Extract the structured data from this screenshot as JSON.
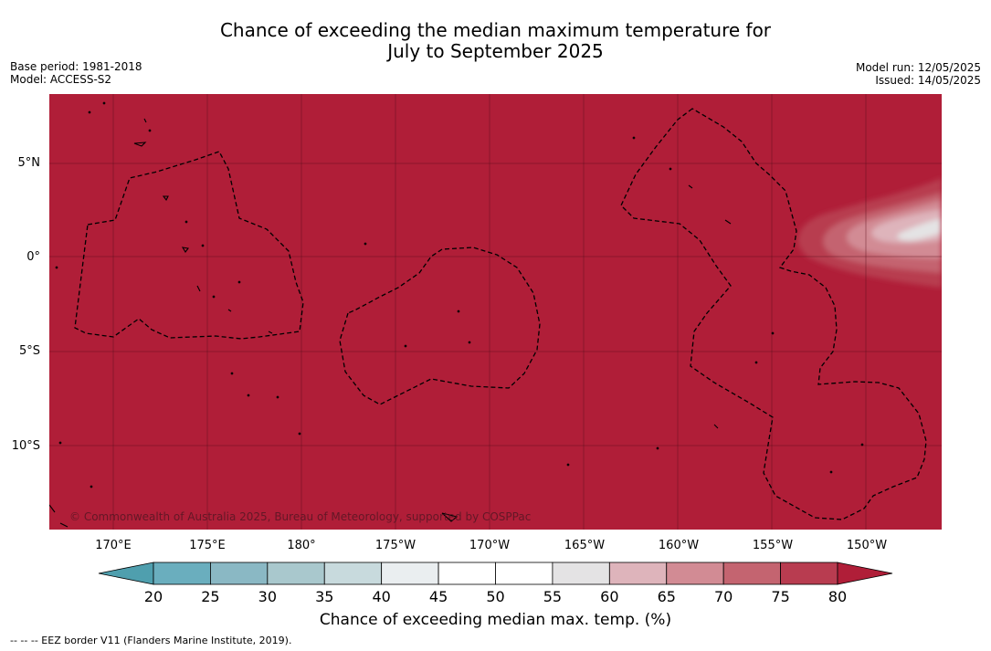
{
  "title_line1": "Chance of exceeding the median maximum temperature for",
  "title_line2": "July to September 2025",
  "meta_left": {
    "base_period": "Base period: 1981-2018",
    "model": "Model: ACCESS-S2"
  },
  "meta_right": {
    "model_run": "Model run: 12/05/2025",
    "issued": "Issued: 14/05/2025"
  },
  "map": {
    "lat_labels": [
      "5°N",
      "0°",
      "5°S",
      "10°S"
    ],
    "lon_labels": [
      "170°E",
      "175°E",
      "180°",
      "175°W",
      "170°W",
      "165°W",
      "160°W",
      "155°W",
      "150°W"
    ],
    "copyright": "© Commonwealth of Australia 2025, Bureau of Meteorology, supported by COSPPac",
    "background_color": "#b01e38",
    "eez_line_style": "dashed"
  },
  "colorbar": {
    "ticks": [
      "20",
      "25",
      "30",
      "35",
      "40",
      "45",
      "50",
      "55",
      "60",
      "65",
      "70",
      "75",
      "80"
    ],
    "colors": [
      "#4f9fae",
      "#6aaebe",
      "#8ab8c4",
      "#a9c8cd",
      "#c8dadd",
      "#eaeef0",
      "#ffffff",
      "#ffffff",
      "#e4e3e4",
      "#deb4bb",
      "#d28b94",
      "#c46470",
      "#b83c50",
      "#b01e38"
    ],
    "label": "Chance of exceeding median max. temp. (%)"
  },
  "footnote": "--  --  -- EEZ border V11 (Flanders Marine Institute, 2019)."
}
